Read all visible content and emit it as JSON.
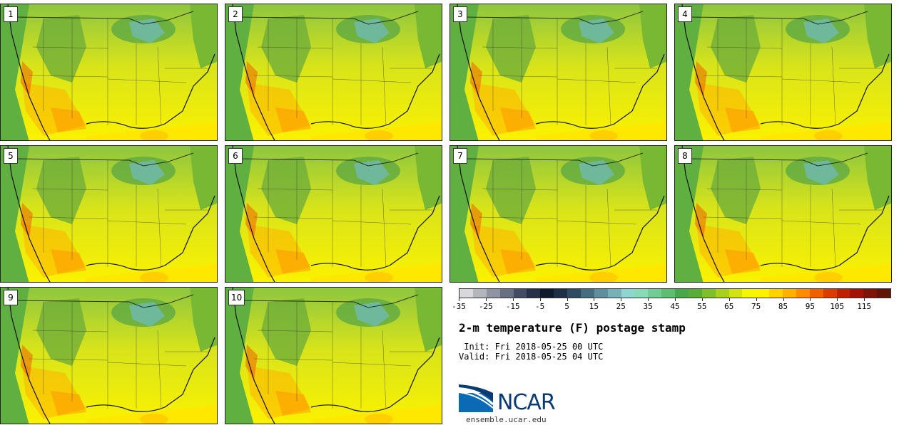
{
  "stamps": [
    {
      "label": "1"
    },
    {
      "label": "2"
    },
    {
      "label": "3"
    },
    {
      "label": "4"
    },
    {
      "label": "5"
    },
    {
      "label": "6"
    },
    {
      "label": "7"
    },
    {
      "label": "8"
    },
    {
      "label": "9"
    },
    {
      "label": "10"
    }
  ],
  "colorbar": {
    "colors": [
      "#d8d8dc",
      "#b4b6be",
      "#8f93a2",
      "#6a7084",
      "#434c64",
      "#273149",
      "#101a2d",
      "#1d2e45",
      "#2e4b63",
      "#466c81",
      "#5f8e9d",
      "#79b1b8",
      "#8fd6d2",
      "#8adab8",
      "#74cc95",
      "#5fbd72",
      "#4aa64b",
      "#57ac3a",
      "#7fbe2c",
      "#a9d01f",
      "#d2e214",
      "#f5f508",
      "#fff200",
      "#ffd200",
      "#ffb100",
      "#ff8c00",
      "#ef6000",
      "#d83c00",
      "#bc2200",
      "#a01408",
      "#7c1408",
      "#5e1406"
    ],
    "tick_labels": [
      "-35",
      "-25",
      "-15",
      "-5",
      "5",
      "15",
      "25",
      "35",
      "45",
      "55",
      "65",
      "75",
      "85",
      "95",
      "105",
      "115"
    ]
  },
  "title": "2-m temperature (F) postage stamp",
  "init": " Init: Fri 2018-05-25 00 UTC",
  "valid": "Valid: Fri 2018-05-25 04 UTC",
  "logo": {
    "name": "NCAR",
    "colors": {
      "blue": "#0a6ab5",
      "navy": "#0a3c73"
    }
  },
  "url": "ensemble.ucar.edu"
}
